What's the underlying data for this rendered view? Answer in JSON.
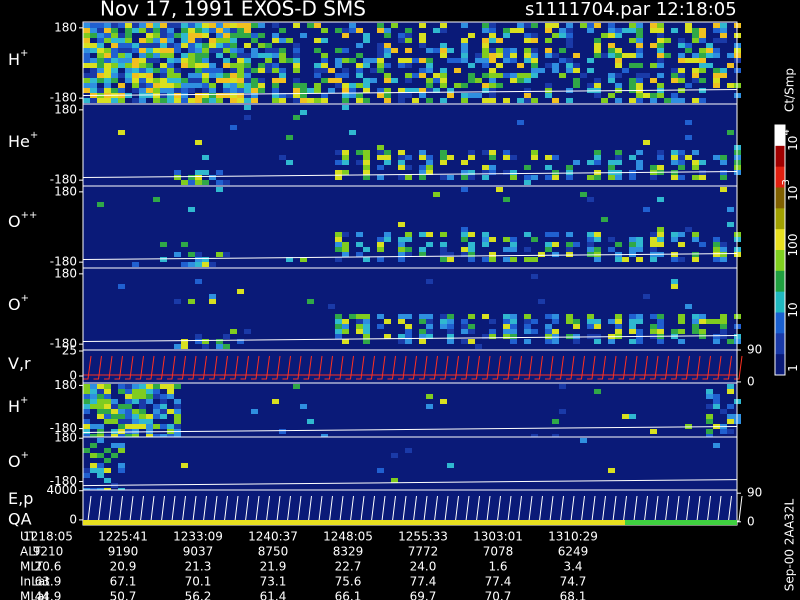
{
  "chart_data": {
    "type": "spectrogram",
    "title": "Nov 17, 1991   EXOS-D SMS",
    "subtitle": "s1111704.par  12:18:05",
    "panels": [
      {
        "label": {
          "base": "H",
          "sup": "+"
        },
        "ylim": [
          -210,
          210
        ],
        "yticks": [
          180,
          -180
        ]
      },
      {
        "label": {
          "base": "He",
          "sup": "+"
        },
        "ylim": [
          -210,
          210
        ],
        "yticks": [
          180,
          -180
        ]
      },
      {
        "label": {
          "base": "O",
          "sup": "++"
        },
        "ylim": [
          -210,
          210
        ],
        "yticks": [
          180,
          -180
        ]
      },
      {
        "label": {
          "base": "O",
          "sup": "+"
        },
        "ylim": [
          -210,
          210
        ],
        "yticks": [
          180,
          -180
        ]
      },
      {
        "label": {
          "base": "V,r"
        },
        "ylim": [
          -7,
          26
        ],
        "yticks": [
          25,
          0
        ],
        "y2lim": [
          -3,
          90
        ],
        "y2ticks": [
          90,
          0
        ]
      },
      {
        "label": {
          "base": "H",
          "sup": "+"
        },
        "ylim": [
          -250,
          200
        ],
        "yticks": [
          180,
          -180
        ]
      },
      {
        "label": {
          "base": "O",
          "sup": "+"
        },
        "ylim": [
          -250,
          190
        ],
        "yticks": [
          180,
          -180
        ]
      },
      {
        "label": {
          "base": "E,p"
        },
        "sublabel": "QA",
        "ylim": [
          -700,
          4100
        ],
        "yticks": [
          4000,
          0
        ],
        "y2lim": [
          -10,
          100
        ],
        "y2ticks": [
          90,
          0
        ]
      }
    ],
    "colorbar": {
      "title": "Ct/Smp",
      "ticks": [
        {
          "base": "10",
          "sup": "4"
        },
        {
          "base": "10",
          "sup": "3"
        },
        {
          "base": "100"
        },
        {
          "base": "10"
        },
        {
          "base": "1"
        }
      ]
    },
    "footer": "Sep-00  2AA32L",
    "table": {
      "rows": [
        {
          "label": "UT",
          "values": [
            "1218:05",
            "1225:41",
            "1233:09",
            "1240:37",
            "1248:05",
            "1255:33",
            "1303:01",
            "1310:29"
          ]
        },
        {
          "label": "ALT",
          "values": [
            "9210",
            "9190",
            "9037",
            "8750",
            "8329",
            "7772",
            "7078",
            "6249"
          ]
        },
        {
          "label": "MLT",
          "values": [
            "20.6",
            "20.9",
            "21.3",
            "21.9",
            "22.7",
            "24.0",
            "1.6",
            "3.4"
          ]
        },
        {
          "label": "InLat",
          "values": [
            "63.9",
            "67.1",
            "70.1",
            "73.1",
            "75.6",
            "77.4",
            "77.4",
            "74.7"
          ]
        },
        {
          "label": "MLat",
          "values": [
            "44.9",
            "50.7",
            "56.2",
            "61.4",
            "66.1",
            "69.7",
            "70.7",
            "68.1"
          ]
        }
      ]
    }
  }
}
